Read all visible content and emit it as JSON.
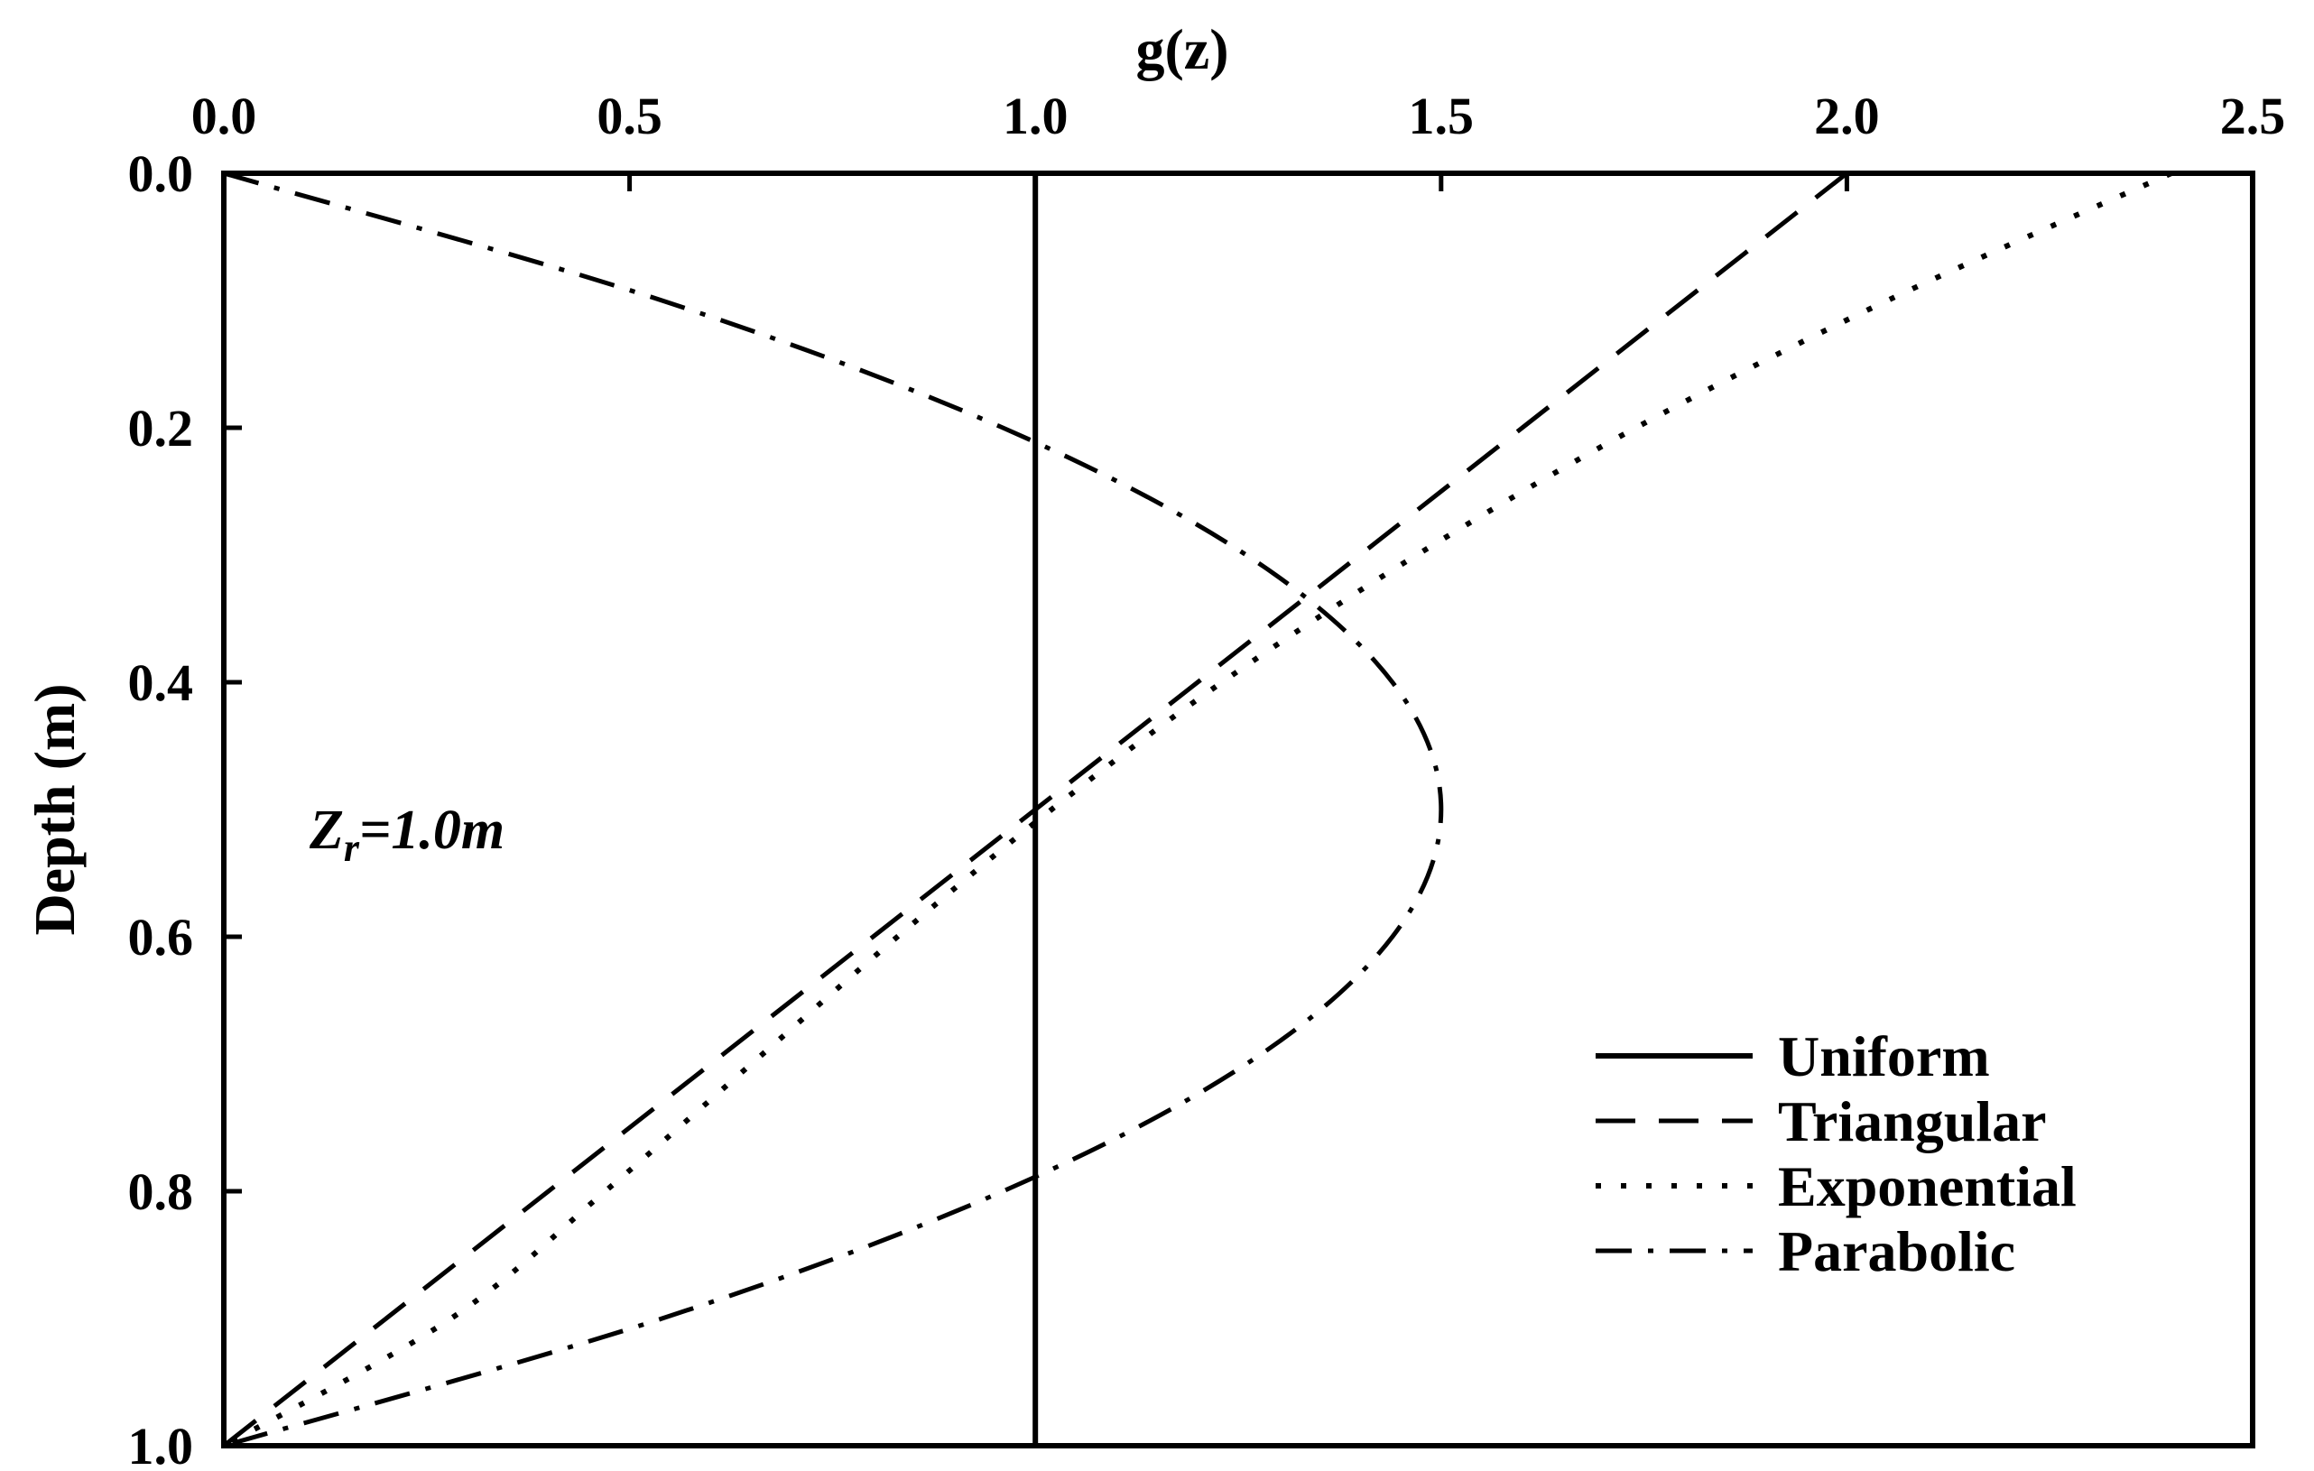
{
  "chart_data": {
    "type": "line",
    "title": "",
    "xlabel": "g(z)",
    "ylabel": "Depth (m)",
    "xlim": [
      0.0,
      2.5
    ],
    "ylim": [
      0.0,
      1.0
    ],
    "y_inverted": true,
    "x_axis_position": "top",
    "grid": false,
    "legend_position": "bottom-right",
    "xticks": [
      "0.0",
      "0.5",
      "1.0",
      "1.5",
      "2.0",
      "2.5"
    ],
    "yticks": [
      "0.0",
      "0.2",
      "0.4",
      "0.6",
      "0.8",
      "1.0"
    ],
    "annotation": {
      "text_main": "Z",
      "text_sub": "r",
      "text_tail": "=1.0m"
    },
    "series": [
      {
        "name": "Uniform",
        "style": "solid",
        "x": [
          1.0,
          1.0
        ],
        "y": [
          0.0,
          1.0
        ]
      },
      {
        "name": "Triangular",
        "style": "dashed",
        "x": [
          2.0,
          1.8,
          1.6,
          1.4,
          1.2,
          1.0,
          0.8,
          0.6,
          0.4,
          0.2,
          0.0
        ],
        "y": [
          0.0,
          0.1,
          0.2,
          0.3,
          0.4,
          0.5,
          0.6,
          0.7,
          0.8,
          0.9,
          1.0
        ]
      },
      {
        "name": "Exponential",
        "style": "dotted",
        "x": [
          2.4,
          2.05,
          1.74,
          1.47,
          1.23,
          1.02,
          0.83,
          0.65,
          0.47,
          0.28,
          0.0
        ],
        "y": [
          0.0,
          0.1,
          0.2,
          0.3,
          0.4,
          0.5,
          0.6,
          0.7,
          0.8,
          0.9,
          1.0
        ]
      },
      {
        "name": "Parabolic",
        "style": "dash-dot",
        "x": [
          0.0,
          0.54,
          0.96,
          1.26,
          1.44,
          1.5,
          1.44,
          1.26,
          0.96,
          0.54,
          0.0
        ],
        "y": [
          0.0,
          0.1,
          0.2,
          0.3,
          0.4,
          0.5,
          0.6,
          0.7,
          0.8,
          0.9,
          1.0
        ]
      }
    ]
  }
}
